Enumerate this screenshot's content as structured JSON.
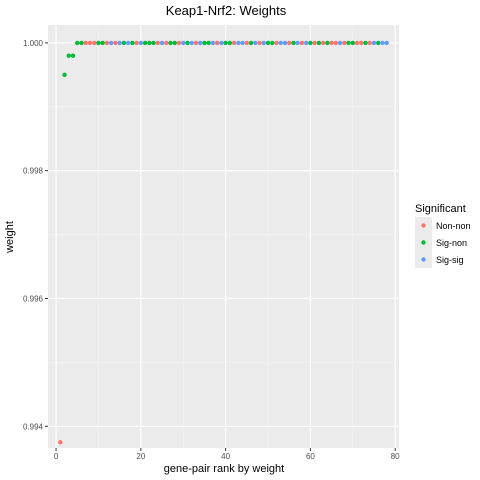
{
  "chart_data": {
    "type": "scatter",
    "title": "Keap1-Nrf2: Weights",
    "xlabel": "gene-pair rank by weight",
    "ylabel": "weight",
    "xlim": [
      -1.9,
      80.9
    ],
    "ylim": [
      0.99366,
      1.00028
    ],
    "x_ticks": [
      0,
      20,
      40,
      60,
      80
    ],
    "x_tick_labels": [
      "0",
      "20",
      "40",
      "60",
      "80"
    ],
    "y_ticks": [
      0.994,
      0.996,
      0.998,
      1.0
    ],
    "y_tick_labels": [
      "0.994",
      "0.996",
      "0.998",
      "1.000"
    ],
    "grid": true,
    "legend": {
      "title": "Significant",
      "placement": "right",
      "entries": [
        {
          "label": "Non-non",
          "color": "#F8766D"
        },
        {
          "label": "Sig-non",
          "color": "#00BA38"
        },
        {
          "label": "Sig-sig",
          "color": "#619CFF"
        }
      ]
    },
    "series": [
      {
        "name": "Non-non",
        "color": "#F8766D",
        "x": [
          1,
          7,
          8,
          9,
          12,
          14,
          19,
          24,
          26,
          29,
          33,
          38,
          42,
          45,
          48,
          52,
          55,
          58,
          61,
          63,
          65,
          66,
          68,
          71,
          72,
          74
        ],
        "y": [
          0.99375,
          1.0,
          1.0,
          1.0,
          1.0,
          1.0,
          1.0,
          1.0,
          1.0,
          1.0,
          1.0,
          1.0,
          1.0,
          1.0,
          1.0,
          1.0,
          1.0,
          1.0,
          1.0,
          1.0,
          1.0,
          1.0,
          1.0,
          1.0,
          1.0,
          1.0
        ]
      },
      {
        "name": "Sig-non",
        "color": "#00BA38",
        "x": [
          2,
          3,
          4,
          5,
          6,
          10,
          11,
          16,
          18,
          21,
          22,
          23,
          27,
          28,
          31,
          35,
          36,
          40,
          41,
          46,
          50,
          51,
          56,
          60,
          62,
          64,
          69,
          70,
          73,
          76
        ],
        "y": [
          0.9995,
          0.9998,
          0.9998,
          1.0,
          1.0,
          1.0,
          1.0,
          1.0,
          1.0,
          1.0,
          1.0,
          1.0,
          1.0,
          1.0,
          1.0,
          1.0,
          1.0,
          1.0,
          1.0,
          1.0,
          1.0,
          1.0,
          1.0,
          1.0,
          1.0,
          1.0,
          1.0,
          1.0,
          1.0,
          1.0
        ]
      },
      {
        "name": "Sig-sig",
        "color": "#619CFF",
        "x": [
          13,
          15,
          17,
          20,
          25,
          30,
          32,
          34,
          37,
          39,
          43,
          44,
          47,
          49,
          53,
          54,
          57,
          59,
          67,
          75,
          77,
          78
        ],
        "y": [
          1.0,
          1.0,
          1.0,
          1.0,
          1.0,
          1.0,
          1.0,
          1.0,
          1.0,
          1.0,
          1.0,
          1.0,
          1.0,
          1.0,
          1.0,
          1.0,
          1.0,
          1.0,
          1.0,
          1.0,
          1.0,
          1.0
        ]
      }
    ]
  }
}
